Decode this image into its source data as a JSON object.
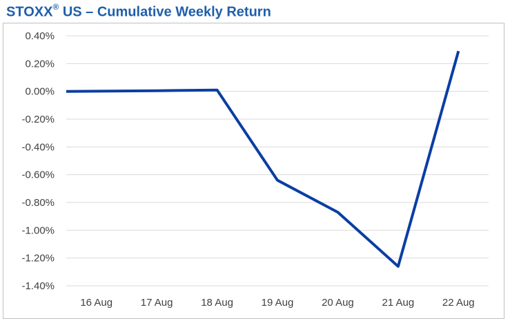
{
  "title": {
    "main": "STOXX",
    "reg": "®",
    "rest": " US – Cumulative Weekly Return"
  },
  "colors": {
    "title": "#1f5faa",
    "line": "#0a3ea3",
    "grid": "#d9d9d9",
    "frame": "#bfbfbf",
    "tick": "#404040"
  },
  "chart_data": {
    "type": "line",
    "title": "STOXX® US – Cumulative Weekly Return",
    "xlabel": "",
    "ylabel": "",
    "categories": [
      "16 Aug",
      "17 Aug",
      "18 Aug",
      "19 Aug",
      "20 Aug",
      "21 Aug",
      "22 Aug"
    ],
    "series": [
      {
        "values": [
          0.0,
          0.005,
          0.01,
          -0.64,
          -0.87,
          -1.26,
          0.29
        ]
      }
    ],
    "ylim": [
      -1.4,
      0.4
    ],
    "yticks": [
      0.4,
      0.2,
      0.0,
      -0.2,
      -0.4,
      -0.6,
      -0.8,
      -1.0,
      -1.2,
      -1.4
    ],
    "ytick_labels": [
      "0.40%",
      "0.20%",
      "0.00%",
      "-0.20%",
      "-0.40%",
      "-0.60%",
      "-0.80%",
      "-1.00%",
      "-1.20%",
      "-1.40%"
    ],
    "grid": true,
    "legend": "none"
  }
}
